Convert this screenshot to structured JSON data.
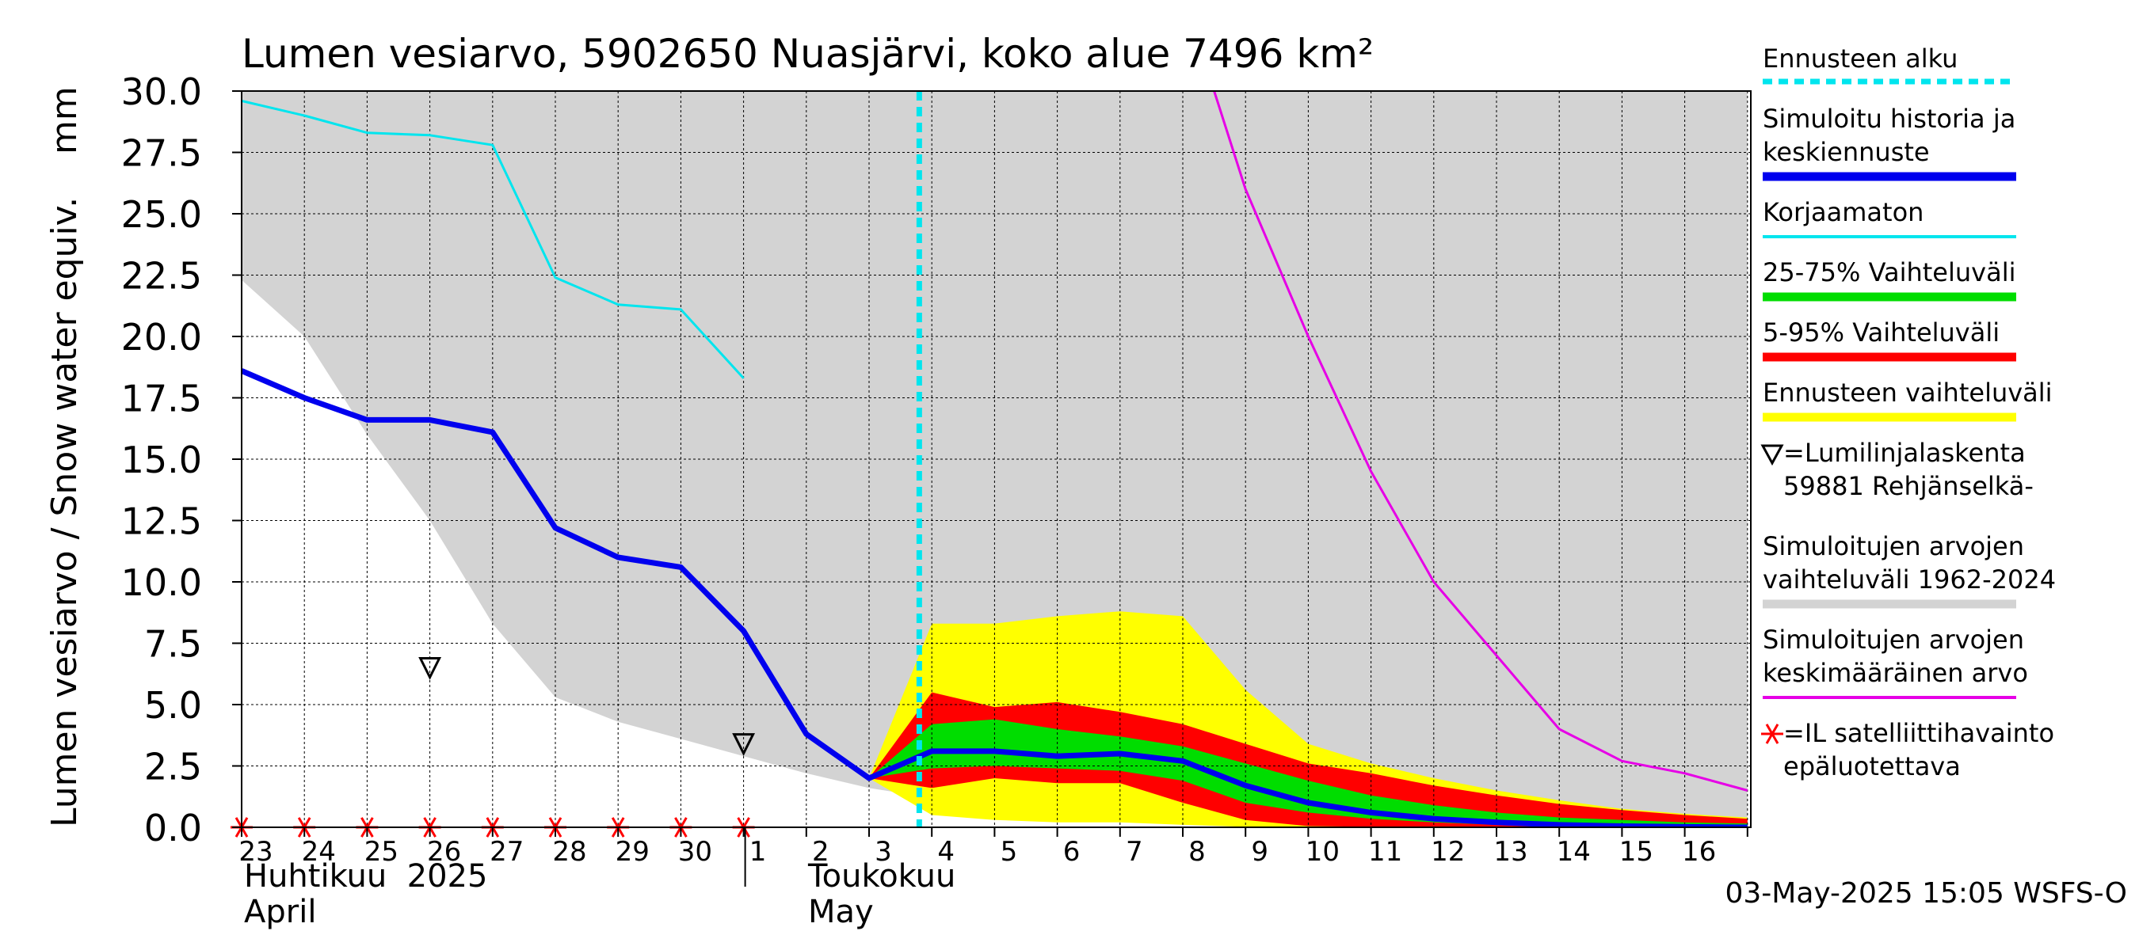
{
  "chart_data": {
    "type": "line",
    "title": "Lumen vesiarvo, 5902650 Nuasjärvi, koko alue 7496 km²",
    "ylabel_main": "Lumen vesiarvo / Snow water equiv.",
    "ylabel_unit": "mm",
    "ylim": [
      0,
      30
    ],
    "yticks": [
      "0.0",
      "2.5",
      "5.0",
      "7.5",
      "10.0",
      "12.5",
      "15.0",
      "17.5",
      "20.0",
      "22.5",
      "25.0",
      "27.5",
      "30.0"
    ],
    "x_day_labels": [
      "23",
      "24",
      "25",
      "26",
      "27",
      "28",
      "29",
      "30",
      "1",
      "2",
      "3",
      "4",
      "5",
      "6",
      "7",
      "8",
      "9",
      "10",
      "11",
      "12",
      "13",
      "14",
      "15",
      "16"
    ],
    "month_labels": {
      "april_fi": "Huhtikuu  2025",
      "april_en": "April",
      "may_fi": "Toukokuu",
      "may_en": "May"
    },
    "forecast_start_x": 10.8,
    "grid": true,
    "series": [
      {
        "name": "Simuloitujen arvojen vaihteluväli 1962-2024",
        "kind": "band",
        "color": "#d3d3d3",
        "x": [
          0,
          1,
          2,
          3,
          4,
          5,
          6,
          7,
          8,
          9,
          10,
          11,
          12,
          13,
          14,
          15,
          16,
          17,
          18,
          19,
          20,
          21,
          22,
          23,
          24
        ],
        "lower": [
          22.3,
          20.0,
          16.0,
          12.5,
          8.3,
          5.3,
          4.3,
          3.6,
          2.9,
          2.2,
          1.6,
          1.2,
          0.9,
          0.7,
          0.5,
          0.35,
          0.2,
          0.1,
          0.05,
          0.02,
          0,
          0,
          0,
          0,
          0
        ],
        "upper": [
          30,
          30,
          30,
          30,
          30,
          30,
          30,
          30,
          30,
          30,
          30,
          30,
          30,
          30,
          30,
          30,
          30,
          30,
          30,
          30,
          30,
          30,
          30,
          30,
          30
        ]
      },
      {
        "name": "Ennusteen vaihteluväli",
        "kind": "band",
        "color": "#ffff00",
        "x": [
          10,
          11,
          12,
          13,
          14,
          15,
          16,
          17,
          18,
          19,
          20,
          21,
          22,
          23,
          24
        ],
        "lower": [
          2.0,
          0.5,
          0.3,
          0.2,
          0.2,
          0.1,
          0.02,
          0,
          0,
          0,
          0,
          0,
          0,
          0,
          0
        ],
        "upper": [
          2.0,
          8.3,
          8.3,
          8.6,
          8.8,
          8.6,
          5.6,
          3.4,
          2.6,
          2.0,
          1.5,
          1.1,
          0.75,
          0.55,
          0.4
        ]
      },
      {
        "name": "5-95% Vaihteluväli",
        "kind": "band",
        "color": "#ff0000",
        "x": [
          10,
          11,
          12,
          13,
          14,
          15,
          16,
          17,
          18,
          19,
          20,
          21,
          22,
          23,
          24
        ],
        "lower": [
          2.0,
          1.6,
          2.0,
          1.8,
          1.8,
          1.0,
          0.3,
          0.05,
          0.02,
          0,
          0,
          0,
          0,
          0,
          0
        ],
        "upper": [
          2.0,
          5.5,
          4.9,
          5.1,
          4.7,
          4.2,
          3.4,
          2.6,
          2.2,
          1.7,
          1.3,
          0.95,
          0.7,
          0.5,
          0.35
        ]
      },
      {
        "name": "25-75% Vaihteluväli",
        "kind": "band",
        "color": "#00dd00",
        "x": [
          10,
          11,
          12,
          13,
          14,
          15,
          16,
          17,
          18,
          19,
          20,
          21,
          22,
          23,
          24
        ],
        "lower": [
          2.0,
          2.4,
          2.5,
          2.4,
          2.3,
          1.9,
          1.0,
          0.6,
          0.35,
          0.2,
          0.1,
          0.05,
          0.03,
          0.01,
          0
        ],
        "upper": [
          2.0,
          4.2,
          4.4,
          4.0,
          3.7,
          3.3,
          2.6,
          1.9,
          1.3,
          0.9,
          0.6,
          0.4,
          0.3,
          0.2,
          0.15
        ]
      },
      {
        "name": "Simuloitujen arvojen keskimääräinen arvo",
        "kind": "line",
        "color": "#e600e6",
        "width": 3,
        "x": [
          15.5,
          16,
          17,
          18,
          19,
          20,
          21,
          22,
          23,
          24
        ],
        "y": [
          30.0,
          26.0,
          20.0,
          14.5,
          10.0,
          7.0,
          4.0,
          2.7,
          2.2,
          1.5
        ]
      },
      {
        "name": "Korjaamaton",
        "kind": "line",
        "color": "#00e5ee",
        "width": 3,
        "x": [
          0,
          1,
          2,
          3,
          4,
          5,
          6,
          7,
          8
        ],
        "y": [
          29.6,
          29.0,
          28.3,
          28.2,
          27.8,
          22.4,
          21.3,
          21.1,
          18.3
        ]
      },
      {
        "name": "Simuloitu historia ja keskiennuste",
        "kind": "line",
        "color": "#0000ee",
        "width": 7,
        "x": [
          0,
          1,
          2,
          3,
          4,
          5,
          6,
          7,
          8,
          9,
          10,
          11,
          12,
          13,
          14,
          15,
          16,
          17,
          18,
          19,
          20,
          21,
          22,
          23,
          24
        ],
        "y": [
          18.6,
          17.5,
          16.6,
          16.6,
          16.1,
          12.2,
          11.0,
          10.6,
          8.0,
          3.8,
          2.0,
          3.1,
          3.1,
          2.9,
          3.0,
          2.7,
          1.7,
          1.0,
          0.6,
          0.35,
          0.2,
          0.1,
          0.05,
          0.02,
          0
        ]
      }
    ],
    "markers_triangle": {
      "name": "=Lumilinjalaskenta 59881 Rehjänselkä-",
      "x": [
        3,
        8
      ],
      "y": [
        6.5,
        3.4
      ]
    },
    "markers_star": {
      "name": "=IL satelliittihavainto epäluotettava",
      "color": "#ff0000",
      "x": [
        0,
        1,
        2,
        3,
        4,
        5,
        6,
        7,
        8
      ],
      "y": [
        0,
        0,
        0,
        0,
        0,
        0,
        0,
        0,
        0
      ]
    }
  },
  "legend": {
    "items": [
      {
        "lines": [
          "Ennusteen alku"
        ],
        "color": "#00e5ee",
        "style": "dashed"
      },
      {
        "lines": [
          "Simuloitu historia ja",
          "keskiennuste"
        ],
        "color": "#0000ee",
        "style": "thick"
      },
      {
        "lines": [
          "Korjaamaton"
        ],
        "color": "#00e5ee",
        "style": "thin"
      },
      {
        "lines": [
          "25-75% Vaihteluväli"
        ],
        "color": "#00dd00",
        "style": "thick"
      },
      {
        "lines": [
          "5-95% Vaihteluväli"
        ],
        "color": "#ff0000",
        "style": "thick"
      },
      {
        "lines": [
          "Ennusteen vaihteluväli"
        ],
        "color": "#ffff00",
        "style": "thick"
      },
      {
        "lines": [
          "=Lumilinjalaskenta",
          "59881 Rehjänselkä-"
        ],
        "style": "triangle"
      },
      {
        "lines": [
          "Simuloitujen arvojen",
          "vaihteluväli 1962-2024"
        ],
        "color": "#d3d3d3",
        "style": "thick"
      },
      {
        "lines": [
          "Simuloitujen arvojen",
          "keskimääräinen arvo"
        ],
        "color": "#e600e6",
        "style": "thin"
      },
      {
        "lines": [
          "=IL satelliittihavainto",
          "epäluotettava"
        ],
        "color": "#ff0000",
        "style": "star"
      }
    ]
  },
  "timestamp": "03-May-2025 15:05 WSFS-O"
}
